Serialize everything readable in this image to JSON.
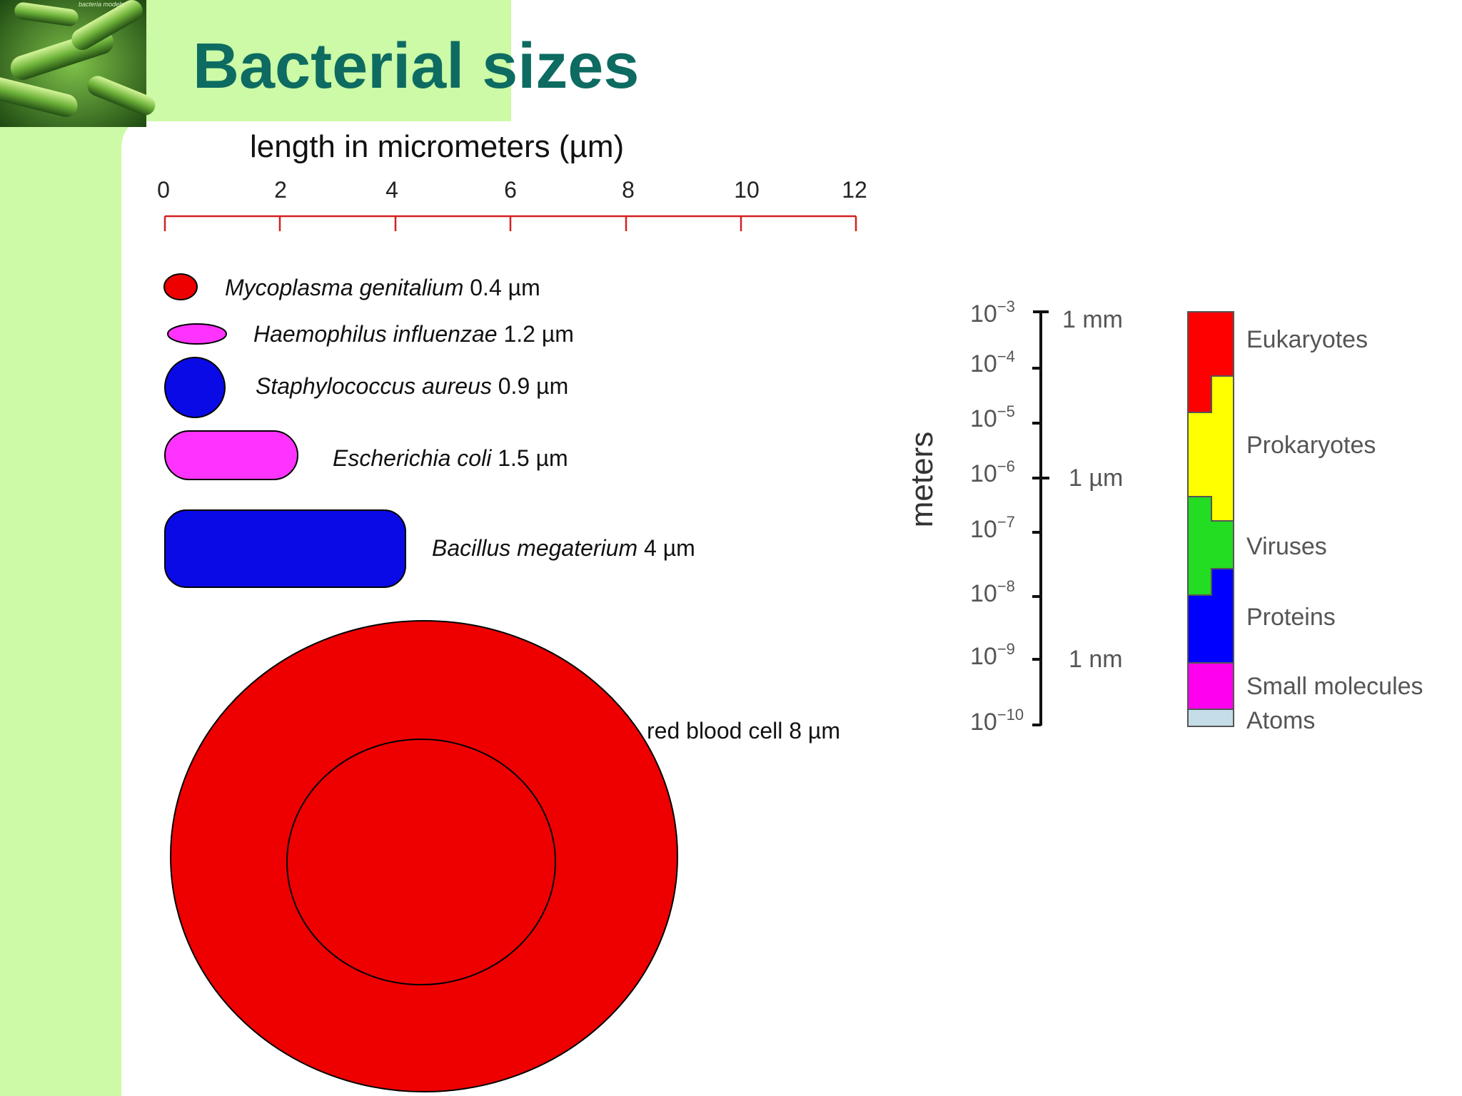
{
  "logo_text": "bacteria models",
  "title": "Bacterial sizes",
  "colors": {
    "title": "#0d6b61",
    "side_panel": "#ccfaa6",
    "ruler": "#d42020",
    "red": "#ee0000",
    "blue": "#0a0ae6",
    "magenta": "#ff33ff"
  },
  "ruler": {
    "title": "length in micrometers  (µm)",
    "ticks": [
      "0",
      "2",
      "4",
      "6",
      "8",
      "10",
      "12"
    ]
  },
  "organisms": [
    {
      "name": "Mycoplasma genitalium",
      "size": "0.4 µm",
      "shape": "ellipse",
      "color": "red"
    },
    {
      "name": "Haemophilus influenzae",
      "size": "1.2 µm",
      "shape": "ellipse",
      "color": "magenta"
    },
    {
      "name": "Staphylococcus aureus",
      "size": "0.9 µm",
      "shape": "circle",
      "color": "blue"
    },
    {
      "name": "Escherichia coli",
      "size": "1.5 µm",
      "shape": "capsule",
      "color": "magenta"
    },
    {
      "name": "Bacillus megaterium",
      "size": "4 µm",
      "shape": "capsule",
      "color": "blue"
    }
  ],
  "red_blood_cell": {
    "label": "red blood cell  8 µm",
    "color": "red"
  },
  "scale": {
    "axis_label": "meters",
    "ticks": [
      {
        "base": "10",
        "exp": "−3",
        "unit": "1 mm"
      },
      {
        "base": "10",
        "exp": "−4",
        "unit": ""
      },
      {
        "base": "10",
        "exp": "−5",
        "unit": ""
      },
      {
        "base": "10",
        "exp": "−6",
        "unit": "1 µm"
      },
      {
        "base": "10",
        "exp": "−7",
        "unit": ""
      },
      {
        "base": "10",
        "exp": "−8",
        "unit": ""
      },
      {
        "base": "10",
        "exp": "−9",
        "unit": "1 nm"
      },
      {
        "base": "10",
        "exp": "−10",
        "unit": ""
      }
    ],
    "categories": [
      {
        "label": "Eukaryotes",
        "color": "#ff0000"
      },
      {
        "label": "Prokaryotes",
        "color": "#ffff00"
      },
      {
        "label": "Viruses",
        "color": "#22dd22"
      },
      {
        "label": "Proteins",
        "color": "#0000ff"
      },
      {
        "label": "Small molecules",
        "color": "#ff00ee"
      },
      {
        "label": "Atoms",
        "color": "#c4dde8"
      }
    ]
  }
}
